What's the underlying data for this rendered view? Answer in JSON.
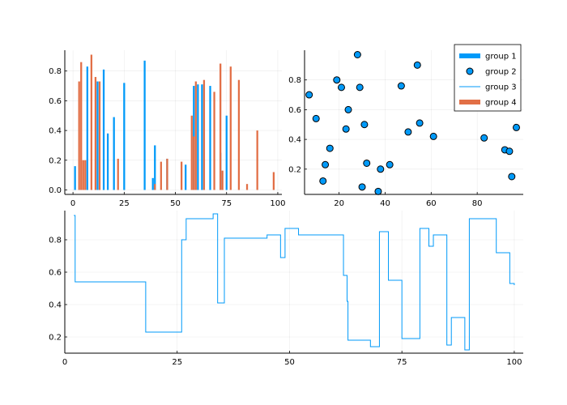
{
  "chart_data": [
    {
      "type": "bar",
      "panel": "top-left",
      "grid": true,
      "xlim": [
        -4,
        102
      ],
      "ylim": [
        -0.03,
        0.94
      ],
      "xticks": [
        0,
        25,
        50,
        75,
        100
      ],
      "yticks": [
        0.0,
        0.2,
        0.4,
        0.6,
        0.8
      ],
      "xtick_labels": [
        "0",
        "25",
        "50",
        "75",
        "100"
      ],
      "ytick_labels": [
        "0.0",
        "0.2",
        "0.4",
        "0.6",
        "0.8"
      ],
      "series": [
        {
          "name": "group 1",
          "color": "#009AF9",
          "x": [
            1,
            7,
            12,
            15,
            17,
            20,
            25,
            35,
            39,
            40,
            46,
            55,
            59,
            61,
            63,
            67,
            72,
            75
          ],
          "values": [
            0.16,
            0.83,
            0.73,
            0.81,
            0.38,
            0.49,
            0.72,
            0.87,
            0.08,
            0.3,
            0.21,
            0.17,
            0.7,
            0.71,
            0.71,
            0.7,
            0.25,
            0.5
          ]
        },
        {
          "name": "group 4",
          "color": "#E26F46",
          "x": [
            3,
            4,
            5,
            6,
            9,
            11,
            13,
            22,
            40,
            43,
            46,
            53,
            58,
            59,
            60,
            64,
            69,
            72,
            73,
            77,
            81,
            85,
            90,
            98
          ],
          "values": [
            0.73,
            0.86,
            0.2,
            0.2,
            0.91,
            0.76,
            0.73,
            0.21,
            0.04,
            0.19,
            0.21,
            0.19,
            0.5,
            0.36,
            0.73,
            0.74,
            0.66,
            0.85,
            0.13,
            0.83,
            0.74,
            0.04,
            0.4,
            0.12
          ]
        }
      ]
    },
    {
      "type": "scatter",
      "panel": "top-right",
      "grid": true,
      "xlim": [
        5,
        100
      ],
      "ylim": [
        0.03,
        1.0
      ],
      "xticks": [
        20,
        40,
        60,
        80
      ],
      "yticks": [
        0.2,
        0.4,
        0.6,
        0.8
      ],
      "xtick_labels": [
        "20",
        "40",
        "60",
        "80"
      ],
      "ytick_labels": [
        "0.2",
        "0.4",
        "0.6",
        "0.8"
      ],
      "legend_position": "top-right",
      "legend": [
        {
          "label": "group 1",
          "kind": "bar",
          "color": "#009AF9"
        },
        {
          "label": "group 2",
          "kind": "marker",
          "color": "#009AF9"
        },
        {
          "label": "group 3",
          "kind": "line",
          "color": "#009AF9"
        },
        {
          "label": "group 4",
          "kind": "bar",
          "color": "#E26F46"
        }
      ],
      "series": [
        {
          "name": "group 2",
          "color": "#009AF9",
          "x": [
            7,
            10,
            13,
            14,
            16,
            19,
            21,
            23,
            24,
            28,
            29,
            30,
            31,
            32,
            37,
            38,
            42,
            47,
            50,
            54,
            55,
            61,
            83,
            92,
            94,
            95,
            97
          ],
          "y": [
            0.7,
            0.54,
            0.12,
            0.23,
            0.34,
            0.8,
            0.75,
            0.47,
            0.6,
            0.97,
            0.75,
            0.08,
            0.5,
            0.24,
            0.05,
            0.2,
            0.23,
            0.76,
            0.45,
            0.9,
            0.51,
            0.42,
            0.41,
            0.33,
            0.32,
            0.15,
            0.48
          ]
        }
      ]
    },
    {
      "type": "line",
      "panel": "bottom",
      "step": true,
      "grid": true,
      "xlim": [
        0,
        102
      ],
      "ylim": [
        0.1,
        0.98
      ],
      "xticks": [
        0,
        25,
        50,
        75,
        100
      ],
      "yticks": [
        0.2,
        0.4,
        0.6,
        0.8
      ],
      "xtick_labels": [
        "0",
        "25",
        "50",
        "75",
        "100"
      ],
      "ytick_labels": [
        "0.2",
        "0.4",
        "0.6",
        "0.8"
      ],
      "series": [
        {
          "name": "group 3",
          "color": "#009AF9",
          "x": [
            2,
            2.3,
            18,
            26,
            26.6,
            27,
            33,
            34,
            35.5,
            45,
            48,
            49,
            52,
            62,
            62.8,
            63,
            68,
            70,
            70.7,
            72,
            75,
            79,
            81,
            82,
            85,
            86,
            89,
            90,
            96,
            99,
            100
          ],
          "y": [
            0.95,
            0.54,
            0.23,
            0.8,
            0.8,
            0.93,
            0.96,
            0.41,
            0.81,
            0.83,
            0.69,
            0.87,
            0.83,
            0.58,
            0.42,
            0.18,
            0.14,
            0.85,
            0.85,
            0.55,
            0.19,
            0.87,
            0.76,
            0.83,
            0.15,
            0.32,
            0.12,
            0.93,
            0.72,
            0.53,
            0.52
          ]
        }
      ]
    }
  ]
}
